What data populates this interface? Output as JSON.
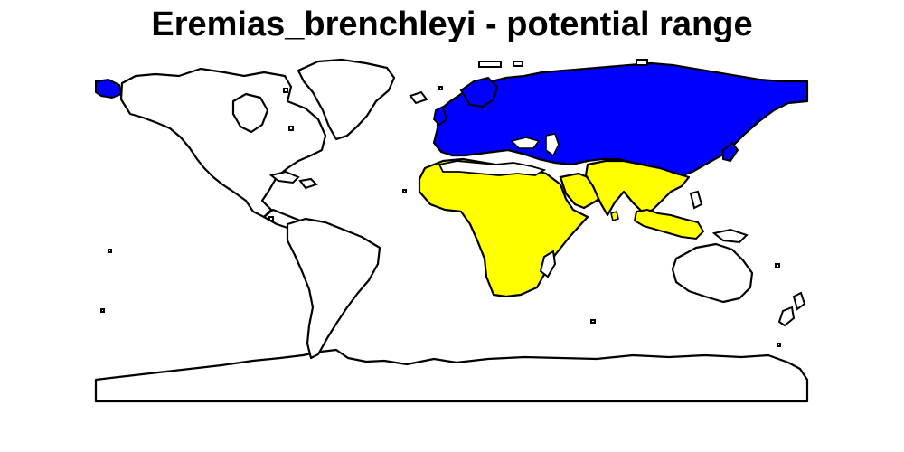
{
  "title": "Eremias_brenchleyi - potential range",
  "colors": {
    "range_north": "#0000ff",
    "range_south": "#ffff00",
    "land": "#ffffff",
    "outline": "#000000",
    "background": "#ffffff"
  }
}
